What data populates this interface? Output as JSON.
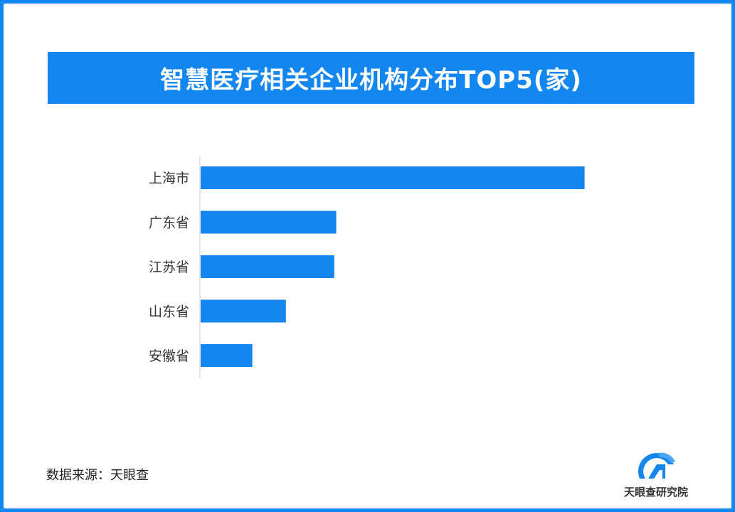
{
  "title": "智慧医疗相关企业机构分布TOP5(家)",
  "source": "数据来源：天眼查",
  "brand": {
    "name": "天眼查研究院",
    "logo_icon": "tianyancha-logo-icon"
  },
  "colors": {
    "accent": "#1386f0",
    "bar": "#1386f0",
    "axis": "#cccccc"
  },
  "chart_data": {
    "type": "bar",
    "orientation": "horizontal",
    "title": "智慧医疗相关企业机构分布TOP5(家)",
    "categories": [
      "上海市",
      "广东省",
      "江苏省",
      "山东省",
      "安徽省"
    ],
    "values": [
      2860,
      1010,
      995,
      635,
      385
    ],
    "xlim": [
      0,
      3000
    ],
    "xlabel": "",
    "ylabel": "",
    "grid": false,
    "legend": "none"
  }
}
